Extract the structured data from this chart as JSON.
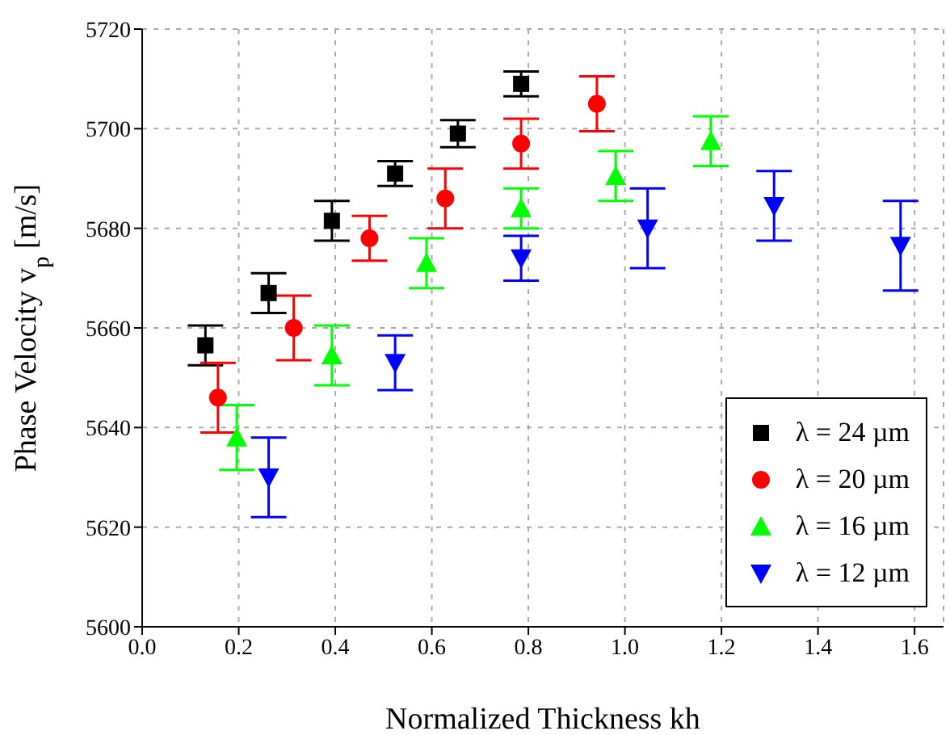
{
  "chart_data": {
    "type": "scatter",
    "xlabel": "Normalized Thickness kh",
    "ylabel": "Phase Velocity v$_{p}$ [m/s]",
    "xlim": [
      0,
      1.66
    ],
    "xticks": [
      {
        "value": 0,
        "label": "0.0"
      },
      0.2,
      0.4,
      0.6,
      0.8,
      {
        "value": 1,
        "label": "1.0"
      },
      1.2,
      1.4,
      1.6
    ],
    "ylim": [
      5600,
      5720
    ],
    "yticks": [
      5600,
      5620,
      5640,
      5660,
      5680,
      5700,
      5720
    ],
    "grid": true,
    "legend": "bottom right",
    "series": [
      {
        "name": "λ = 24 µm",
        "color": "#000000",
        "marker": "square",
        "x": [
          0.131,
          0.262,
          0.393,
          0.524,
          0.654,
          0.785
        ],
        "values": [
          5656.5,
          5667,
          5681.5,
          5691,
          5699,
          5709
        ],
        "errors": [
          4,
          4,
          4,
          2.5,
          2.7,
          2.5
        ]
      },
      {
        "name": "λ = 20 µm",
        "color": "#ff0000",
        "marker": "circle",
        "x": [
          0.157,
          0.314,
          0.471,
          0.628,
          0.785,
          0.942
        ],
        "values": [
          5646,
          5660,
          5678,
          5686,
          5697,
          5705
        ],
        "errors": [
          7,
          6.5,
          4.5,
          6,
          5,
          5.5
        ]
      },
      {
        "name": "λ = 16 µm",
        "color": "#00ff00",
        "marker": "triangle",
        "x": [
          0.196,
          0.393,
          0.589,
          0.785,
          0.981,
          1.178
        ],
        "values": [
          5638,
          5654.5,
          5673,
          5684,
          5690.5,
          5697.5
        ],
        "errors": [
          6.5,
          6,
          5,
          4,
          5,
          5
        ]
      },
      {
        "name": "λ = 12 µm",
        "color": "#0000ff",
        "marker": "triangle-down",
        "x": [
          0.262,
          0.524,
          0.785,
          1.047,
          1.309,
          1.571
        ],
        "values": [
          5630,
          5653,
          5674,
          5680,
          5684.5,
          5676.5
        ],
        "errors": [
          8,
          5.5,
          4.5,
          8,
          7,
          9
        ]
      }
    ]
  }
}
